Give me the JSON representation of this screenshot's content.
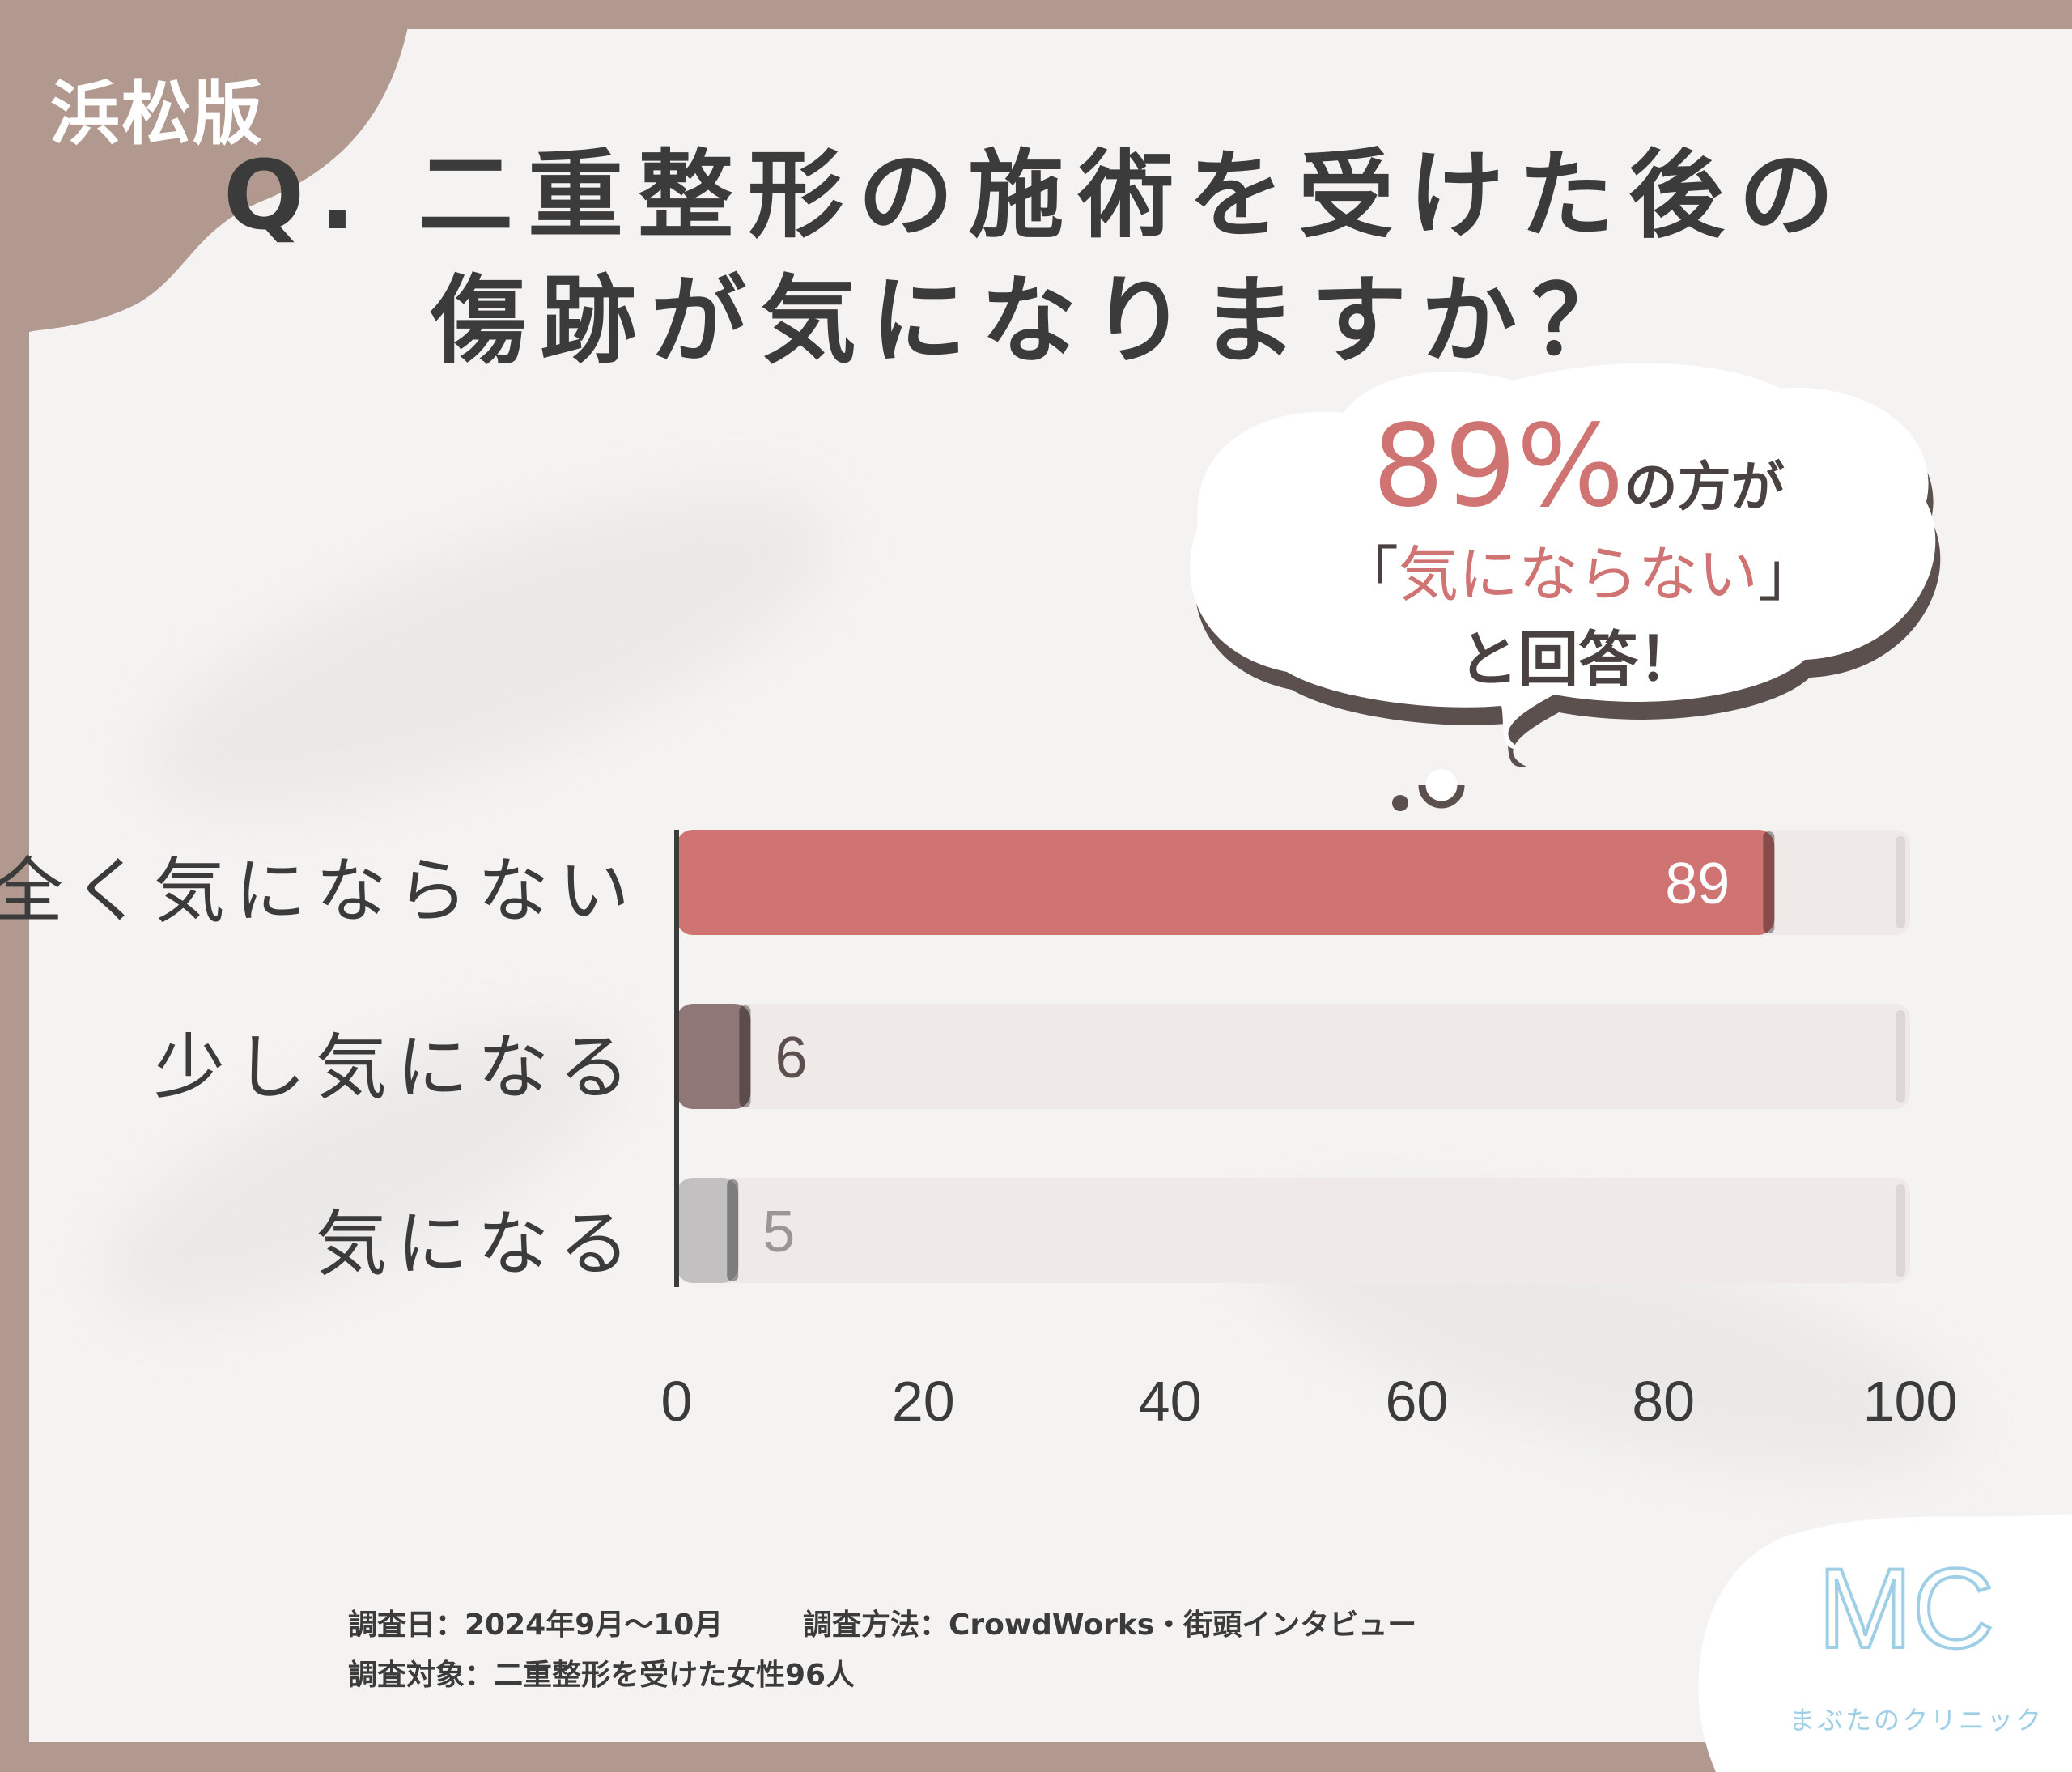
{
  "badge": {
    "region": "浜松版"
  },
  "title": {
    "line1": "Q. 二重整形の施術を受けた後の",
    "line2": "傷跡が気になりますか？"
  },
  "callout": {
    "percent": "89%",
    "line1_rest": "の方が",
    "open_bracket": "「",
    "quote": "気にならない",
    "close_bracket": "」",
    "line3": "と回答！"
  },
  "chart_data": {
    "type": "bar",
    "orientation": "horizontal",
    "categories": [
      "全く気にならない",
      "少し気になる",
      "気になる"
    ],
    "values": [
      89,
      6,
      5
    ],
    "data_labels": [
      "89",
      "6",
      "5"
    ],
    "xlim": [
      0,
      100
    ],
    "x_ticks": [
      "0",
      "20",
      "40",
      "60",
      "80",
      "100"
    ],
    "colors": [
      "#cf7472",
      "#8e7776",
      "#c2c0c0"
    ],
    "track_color": "#efe9e8",
    "legend": "none",
    "grid": false
  },
  "footer": {
    "date": "調査日：2024年9月～10月",
    "method": "調査方法：CrowdWorks・街頭インタビュー",
    "target": "調査対象：二重整形を受けた女性96人"
  },
  "brand": {
    "mark": "MC",
    "name": "まぶたのクリニック",
    "color": "#9fcfe6"
  },
  "theme": {
    "frame": "#b19990",
    "background": "#f4f3f2",
    "accent": "#cf7472",
    "text": "#3b3b3b"
  }
}
